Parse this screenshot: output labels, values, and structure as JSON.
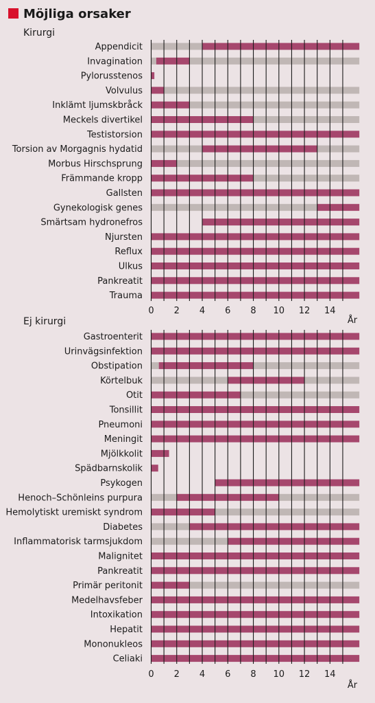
{
  "title": "Möjliga orsaker",
  "colors": {
    "background": "#ece3e5",
    "active": "#a6476d",
    "inactive": "#c0b7b5",
    "title_square": "#d8102b",
    "grid": "#1a1a1a"
  },
  "chart_data": [
    {
      "type": "bar",
      "subtitle": "Kirurgi",
      "xlabel": "År",
      "xlim": [
        0,
        16.3
      ],
      "xticks": [
        0,
        2,
        4,
        6,
        8,
        10,
        12,
        14
      ],
      "legend": "none",
      "series_names": [
        "active",
        "inactive"
      ],
      "categories": [
        {
          "label": "Appendicit",
          "segments": [
            [
              0,
              4,
              "inactive"
            ],
            [
              4,
              16.3,
              "active"
            ]
          ]
        },
        {
          "label": "Invagination",
          "segments": [
            [
              0,
              0.4,
              "inactive"
            ],
            [
              0.4,
              3,
              "active"
            ],
            [
              3,
              16.3,
              "inactive"
            ]
          ]
        },
        {
          "label": "Pylorusstenos",
          "segments": [
            [
              0,
              0.25,
              "active"
            ]
          ]
        },
        {
          "label": "Volvulus",
          "segments": [
            [
              0,
              1,
              "active"
            ],
            [
              1,
              16.3,
              "inactive"
            ]
          ]
        },
        {
          "label": "Inklämt ljumskbråck",
          "segments": [
            [
              0,
              3,
              "active"
            ],
            [
              3,
              16.3,
              "inactive"
            ]
          ]
        },
        {
          "label": "Meckels divertikel",
          "segments": [
            [
              0,
              8,
              "active"
            ],
            [
              8,
              16.3,
              "inactive"
            ]
          ]
        },
        {
          "label": "Testistorsion",
          "segments": [
            [
              0,
              16.3,
              "active"
            ]
          ]
        },
        {
          "label": "Torsion av Morgagnis hydatid",
          "segments": [
            [
              0,
              4,
              "inactive"
            ],
            [
              4,
              13,
              "active"
            ],
            [
              13,
              16.3,
              "inactive"
            ]
          ]
        },
        {
          "label": "Morbus Hirschsprung",
          "segments": [
            [
              0,
              2,
              "active"
            ],
            [
              2,
              16.3,
              "inactive"
            ]
          ]
        },
        {
          "label": "Främmande kropp",
          "segments": [
            [
              0,
              8,
              "active"
            ],
            [
              8,
              16.3,
              "inactive"
            ]
          ]
        },
        {
          "label": "Gallsten",
          "segments": [
            [
              0,
              16.3,
              "active"
            ]
          ]
        },
        {
          "label": "Gynekologisk genes",
          "segments": [
            [
              0,
              13,
              "inactive"
            ],
            [
              13,
              16.3,
              "active"
            ]
          ]
        },
        {
          "label": "Smärtsam hydronefros",
          "segments": [
            [
              4,
              16.3,
              "active"
            ]
          ]
        },
        {
          "label": "Njursten",
          "segments": [
            [
              0,
              16.3,
              "active"
            ]
          ]
        },
        {
          "label": "Reflux",
          "segments": [
            [
              0,
              16.3,
              "active"
            ]
          ]
        },
        {
          "label": "Ulkus",
          "segments": [
            [
              0,
              16.3,
              "active"
            ]
          ]
        },
        {
          "label": "Pankreatit",
          "segments": [
            [
              0,
              16.3,
              "active"
            ]
          ]
        },
        {
          "label": "Trauma",
          "segments": [
            [
              0,
              16.3,
              "active"
            ]
          ]
        }
      ]
    },
    {
      "type": "bar",
      "subtitle": "Ej kirurgi",
      "xlabel": "År",
      "xlim": [
        0,
        16.3
      ],
      "xticks": [
        0,
        2,
        4,
        6,
        8,
        10,
        12,
        14
      ],
      "legend": "none",
      "series_names": [
        "active",
        "inactive"
      ],
      "categories": [
        {
          "label": "Gastroenterit",
          "segments": [
            [
              0,
              16.3,
              "active"
            ]
          ]
        },
        {
          "label": "Urinvägsinfektion",
          "segments": [
            [
              0,
              16.3,
              "active"
            ]
          ]
        },
        {
          "label": "Obstipation",
          "segments": [
            [
              0,
              0.6,
              "inactive"
            ],
            [
              0.6,
              8,
              "active"
            ],
            [
              8,
              16.3,
              "inactive"
            ]
          ]
        },
        {
          "label": "Körtelbuk",
          "segments": [
            [
              0,
              6,
              "inactive"
            ],
            [
              6,
              12,
              "active"
            ],
            [
              12,
              16.3,
              "inactive"
            ]
          ]
        },
        {
          "label": "Otit",
          "segments": [
            [
              0,
              7,
              "active"
            ],
            [
              7,
              16.3,
              "inactive"
            ]
          ]
        },
        {
          "label": "Tonsillit",
          "segments": [
            [
              0,
              16.3,
              "active"
            ]
          ]
        },
        {
          "label": "Pneumoni",
          "segments": [
            [
              0,
              16.3,
              "active"
            ]
          ]
        },
        {
          "label": "Meningit",
          "segments": [
            [
              0,
              16.3,
              "active"
            ]
          ]
        },
        {
          "label": "Mjölkkolit",
          "segments": [
            [
              0,
              1.4,
              "active"
            ]
          ]
        },
        {
          "label": "Spädbarnskolik",
          "segments": [
            [
              0,
              0.55,
              "active"
            ]
          ]
        },
        {
          "label": "Psykogen",
          "segments": [
            [
              5,
              16.3,
              "active"
            ]
          ]
        },
        {
          "label": "Henoch–Schönleins purpura",
          "segments": [
            [
              0,
              2,
              "inactive"
            ],
            [
              2,
              10,
              "active"
            ],
            [
              10,
              16.3,
              "inactive"
            ]
          ]
        },
        {
          "label": "Hemolytiskt uremiskt syndrom",
          "segments": [
            [
              0,
              5,
              "active"
            ],
            [
              5,
              16.3,
              "inactive"
            ]
          ]
        },
        {
          "label": "Diabetes",
          "segments": [
            [
              0,
              3,
              "inactive"
            ],
            [
              3,
              16.3,
              "active"
            ]
          ]
        },
        {
          "label": "Inflammatorisk tarmsjukdom",
          "segments": [
            [
              0,
              6,
              "inactive"
            ],
            [
              6,
              16.3,
              "active"
            ]
          ]
        },
        {
          "label": "Malignitet",
          "segments": [
            [
              0,
              16.3,
              "active"
            ]
          ]
        },
        {
          "label": "Pankreatit",
          "segments": [
            [
              0,
              16.3,
              "active"
            ]
          ]
        },
        {
          "label": "Primär peritonit",
          "segments": [
            [
              0,
              3,
              "active"
            ],
            [
              3,
              16.3,
              "inactive"
            ]
          ]
        },
        {
          "label": "Medelhavsfeber",
          "segments": [
            [
              0,
              16.3,
              "active"
            ]
          ]
        },
        {
          "label": "Intoxikation",
          "segments": [
            [
              0,
              16.3,
              "active"
            ]
          ]
        },
        {
          "label": "Hepatit",
          "segments": [
            [
              0,
              16.3,
              "active"
            ]
          ]
        },
        {
          "label": "Mononukleos",
          "segments": [
            [
              0,
              16.3,
              "active"
            ]
          ]
        },
        {
          "label": "Celiaki",
          "segments": [
            [
              0,
              16.3,
              "active"
            ]
          ]
        }
      ]
    }
  ]
}
